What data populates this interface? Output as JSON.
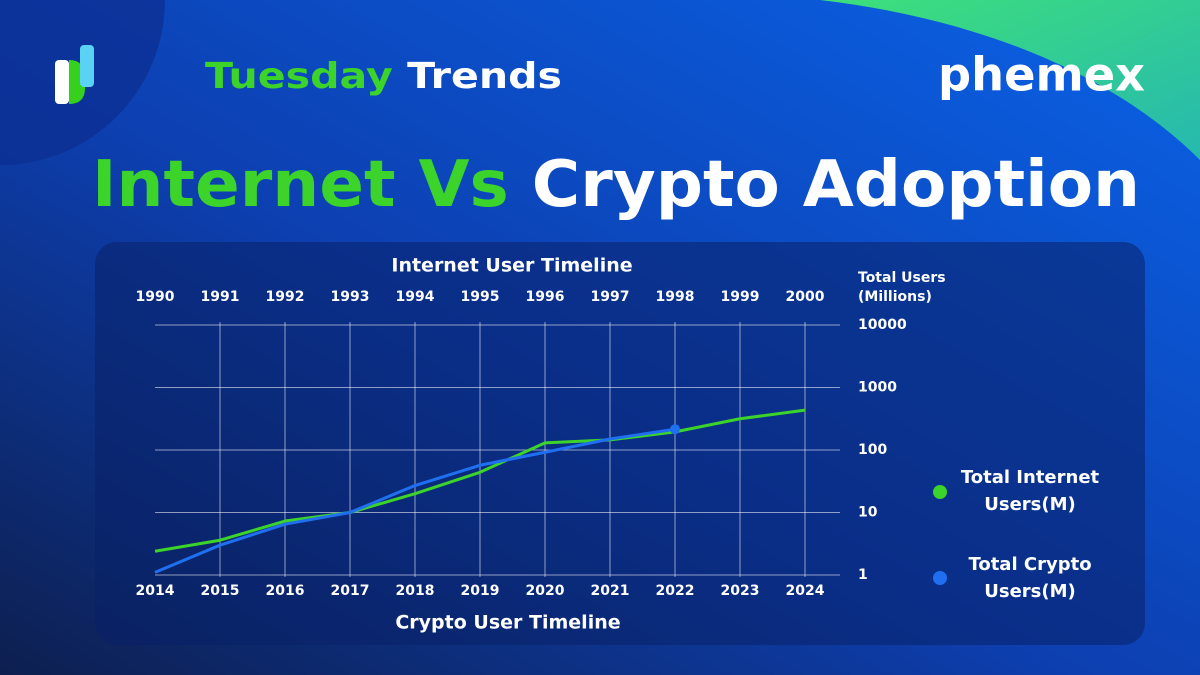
{
  "header": {
    "series_name": [
      "Tuesday",
      "Trends"
    ],
    "title": [
      "Internet Vs",
      "Crypto Adoption"
    ],
    "brand": "phemex"
  },
  "chart_data": {
    "type": "line",
    "top_axis_title": "Internet User Timeline",
    "bottom_axis_title": "Crypto User Timeline",
    "ylabel": [
      "Total Users",
      "(Millions)"
    ],
    "categories_top": [
      "1990",
      "1991",
      "1992",
      "1993",
      "1994",
      "1995",
      "1996",
      "1997",
      "1998",
      "1999",
      "2000"
    ],
    "categories_bottom": [
      "2014",
      "2015",
      "2016",
      "2017",
      "2018",
      "2019",
      "2020",
      "2021",
      "2022",
      "2023",
      "2024"
    ],
    "ylim": [
      1,
      10000
    ],
    "yticks": [
      1,
      10,
      100,
      1000,
      10000
    ],
    "log_y": true,
    "grid": true,
    "series": [
      {
        "name": "Total Internet Users(M)",
        "color": "#3cd32a",
        "axis": "top",
        "values": [
          2.4,
          3.6,
          7.3,
          10,
          20,
          44,
          130,
          145,
          195,
          316,
          435
        ]
      },
      {
        "name": "Total Crypto Users(M)",
        "color": "#1f6ff0",
        "axis": "bottom",
        "values": [
          1.1,
          3,
          6.5,
          10,
          27,
          57,
          92,
          150,
          215
        ]
      }
    ]
  }
}
